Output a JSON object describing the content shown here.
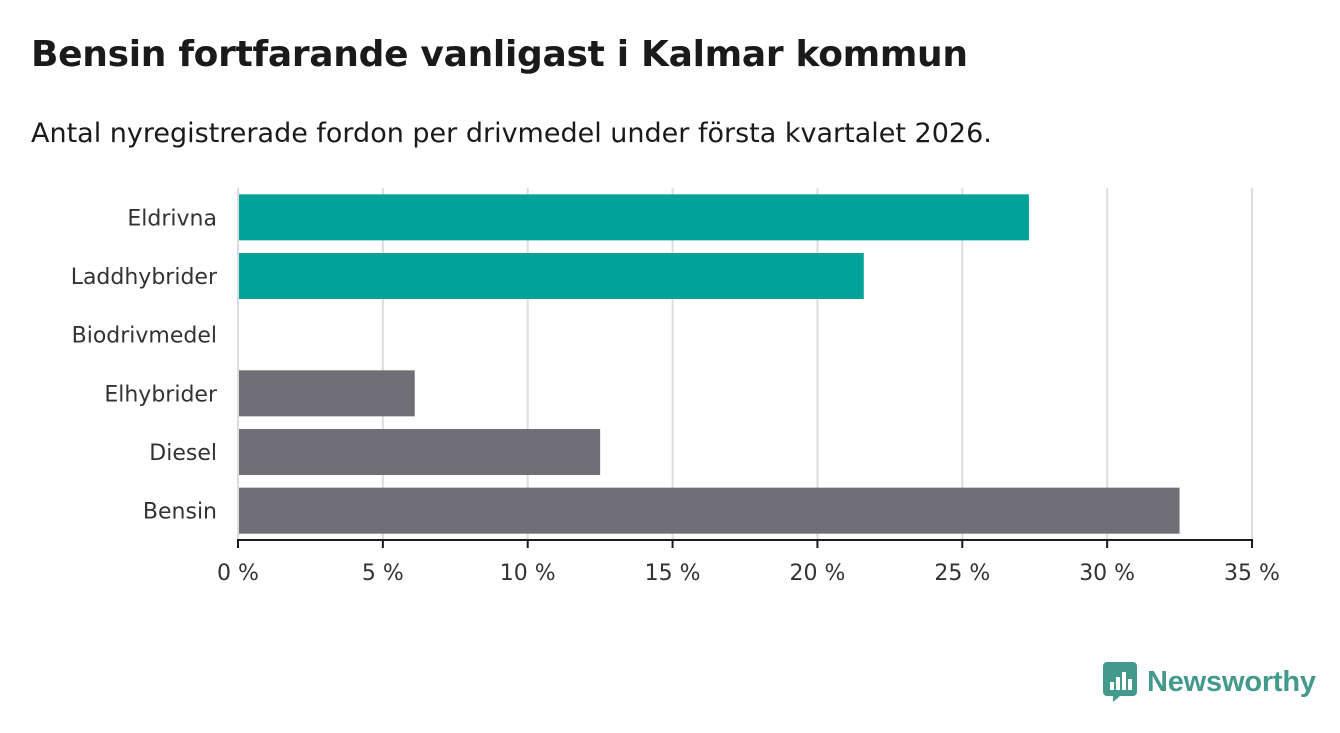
{
  "chart_data": {
    "type": "bar",
    "orientation": "horizontal",
    "title": "Bensin fortfarande vanligast i Kalmar kommun",
    "subtitle": "Antal nyregistrerade fordon per drivmedel under första kvartalet 2026.",
    "categories": [
      "Eldrivna",
      "Laddhybrider",
      "Biodrivmedel",
      "Elhybrider",
      "Diesel",
      "Bensin"
    ],
    "values": [
      27.3,
      21.6,
      0,
      6.1,
      12.5,
      32.5
    ],
    "bar_colors": [
      "#00a397",
      "#00a397",
      "#00a397",
      "#706f75",
      "#706f75",
      "#706f75"
    ],
    "xlim": [
      0,
      35
    ],
    "xticks": [
      0,
      5,
      10,
      15,
      20,
      25,
      30,
      35
    ],
    "tick_labels": [
      "0 %",
      "5 %",
      "10 %",
      "15 %",
      "20 %",
      "25 %",
      "30 %",
      "35 %"
    ],
    "xlabel": "",
    "ylabel": "",
    "grid": true
  },
  "brand": {
    "name": "Newsworthy",
    "color": "#44998d"
  }
}
